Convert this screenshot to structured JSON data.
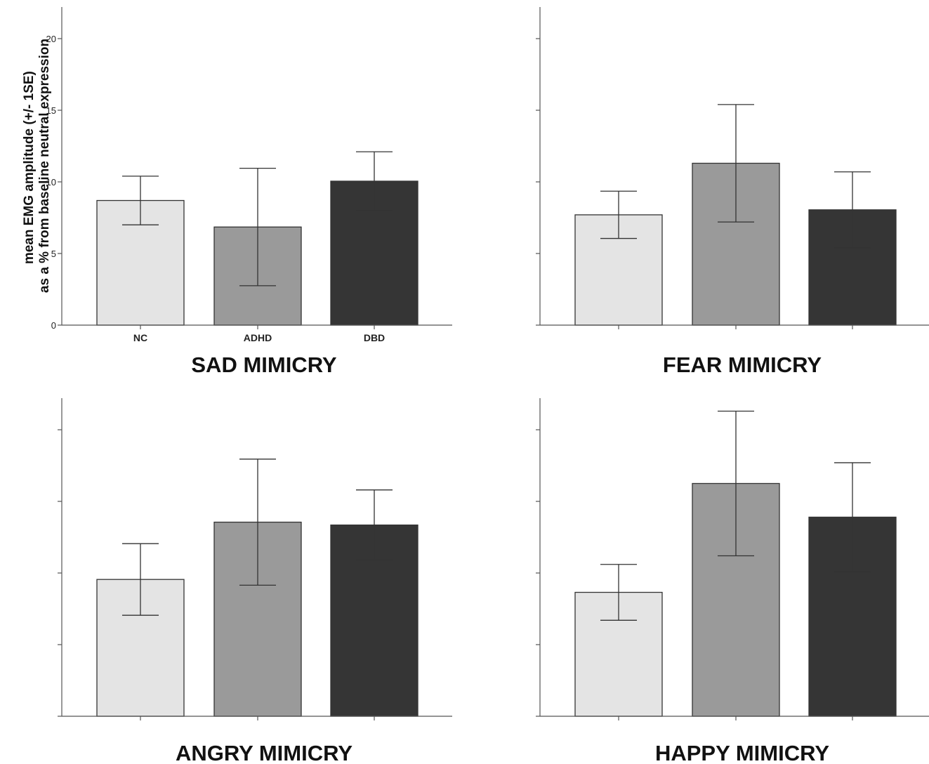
{
  "ylabel_lines": [
    "mean EMG amplitude (+/- 1SE)",
    "as a % from baseline neutral expression"
  ],
  "group_colors": [
    "#e4e4e4",
    "#9a9a9a",
    "#353535"
  ],
  "chart_data": [
    {
      "type": "bar",
      "title": "SAD MIMICRY",
      "categories": [
        "NC",
        "ADHD",
        "DBD"
      ],
      "values": [
        8.7,
        6.85,
        10.05
      ],
      "error": [
        1.7,
        4.1,
        2.05
      ],
      "ylim": [
        0,
        22
      ],
      "yticks": [
        0,
        5,
        10,
        15,
        20
      ],
      "show_tick_labels": true,
      "show_category_labels": true,
      "grid": false
    },
    {
      "type": "bar",
      "title": "FEAR MIMICRY",
      "categories": [
        "NC",
        "ADHD",
        "DBD"
      ],
      "values": [
        7.7,
        11.3,
        8.05
      ],
      "error": [
        1.65,
        4.1,
        2.65
      ],
      "ylim": [
        0,
        22
      ],
      "yticks": [
        0,
        5,
        10,
        15,
        20
      ],
      "show_tick_labels": false,
      "show_category_labels": false,
      "grid": false
    },
    {
      "type": "bar",
      "title": "ANGRY MIMICRY",
      "categories": [
        "NC",
        "ADHD",
        "DBD"
      ],
      "values": [
        9.55,
        13.55,
        13.35
      ],
      "error": [
        2.5,
        4.4,
        2.45
      ],
      "ylim": [
        0,
        22
      ],
      "yticks": [
        0,
        5,
        10,
        15,
        20
      ],
      "show_tick_labels": false,
      "show_category_labels": false,
      "grid": false
    },
    {
      "type": "bar",
      "title": "HAPPY MIMICRY",
      "categories": [
        "NC",
        "ADHD",
        "DBD"
      ],
      "values": [
        8.65,
        16.25,
        13.9
      ],
      "error": [
        1.95,
        5.05,
        3.8
      ],
      "ylim": [
        0,
        22
      ],
      "yticks": [
        0,
        5,
        10,
        15,
        20
      ],
      "show_tick_labels": false,
      "show_category_labels": false,
      "grid": false
    }
  ]
}
